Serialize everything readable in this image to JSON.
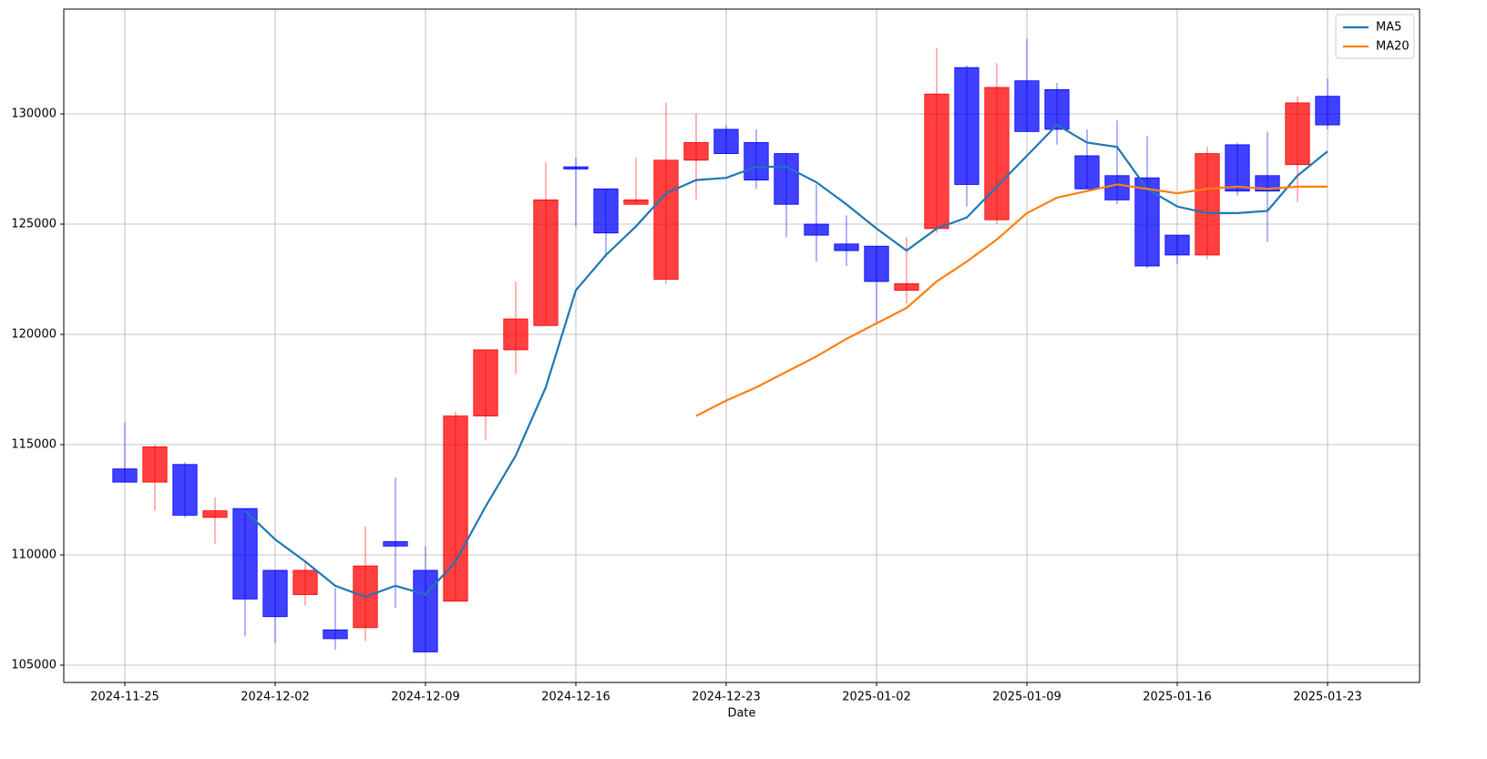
{
  "chart_data": {
    "type": "candlestick",
    "x_label": "Date",
    "categories": [
      "2024-11-25",
      null,
      null,
      null,
      null,
      "2024-12-02",
      null,
      null,
      null,
      null,
      "2024-12-09",
      null,
      null,
      null,
      null,
      "2024-12-16",
      null,
      null,
      null,
      null,
      "2024-12-23",
      null,
      null,
      null,
      null,
      "2025-01-02",
      null,
      null,
      null,
      null,
      "2025-01-09",
      null,
      null,
      null,
      null,
      "2025-01-16",
      null,
      null,
      null,
      null,
      "2025-01-23"
    ],
    "open": [
      113900,
      113300,
      114100,
      111700,
      112100,
      109300,
      108200,
      106600,
      106700,
      110600,
      109300,
      107900,
      116300,
      119300,
      120400,
      127600,
      126600,
      125900,
      122500,
      127900,
      129300,
      128700,
      128200,
      125000,
      124100,
      124000,
      122000,
      124800,
      132100,
      125200,
      131500,
      131100,
      128100,
      127200,
      127100,
      124500,
      123600,
      128600,
      127200,
      127700,
      130800
    ],
    "high": [
      116000,
      115000,
      114200,
      112600,
      112100,
      109300,
      109700,
      108500,
      111300,
      113500,
      110400,
      116500,
      119300,
      122400,
      127800,
      128000,
      126600,
      128000,
      130500,
      130000,
      129500,
      129300,
      128200,
      126800,
      125400,
      124000,
      124400,
      133000,
      132200,
      132300,
      133400,
      131400,
      129300,
      129700,
      129000,
      124500,
      128500,
      128700,
      129200,
      130800,
      131600
    ],
    "low": [
      113300,
      112000,
      111700,
      110500,
      106300,
      106000,
      107700,
      105700,
      106100,
      107600,
      105600,
      107900,
      115200,
      118200,
      120400,
      124900,
      123500,
      125900,
      122300,
      126100,
      128200,
      126600,
      124400,
      123300,
      123100,
      120500,
      121400,
      124600,
      125800,
      125000,
      129200,
      128600,
      126600,
      125900,
      123000,
      123200,
      123400,
      126300,
      124200,
      126000,
      129300
    ],
    "close": [
      113300,
      114900,
      111800,
      112000,
      108000,
      107200,
      109300,
      106200,
      109500,
      110400,
      105600,
      116300,
      119300,
      120700,
      126100,
      127500,
      124600,
      126100,
      127900,
      128700,
      128200,
      127000,
      125900,
      124500,
      123800,
      122400,
      122300,
      130900,
      126800,
      131200,
      129200,
      129300,
      126600,
      126100,
      123100,
      123600,
      128200,
      126500,
      126500,
      130500,
      129500
    ],
    "up_color": "#ff0000",
    "down_color": "#0000ff",
    "series": [
      {
        "name": "MA5",
        "color": "#1f77b4",
        "values": [
          null,
          null,
          null,
          null,
          112000,
          110700,
          109700,
          108600,
          108100,
          108600,
          108200,
          109700,
          112200,
          114500,
          117600,
          122000,
          123600,
          124900,
          126400,
          127000,
          127100,
          127600,
          127600,
          126900,
          125900,
          124800,
          123800,
          124800,
          125300,
          126700,
          128100,
          129500,
          128700,
          128500,
          126600,
          125800,
          125500,
          125500,
          125600,
          127200,
          128300
        ]
      },
      {
        "name": "MA20",
        "color": "#ff7f0e",
        "values": [
          null,
          null,
          null,
          null,
          null,
          null,
          null,
          null,
          null,
          null,
          null,
          null,
          null,
          null,
          null,
          null,
          null,
          null,
          null,
          116300,
          117000,
          117600,
          118300,
          119000,
          119800,
          120500,
          121200,
          122400,
          123300,
          124300,
          125500,
          126200,
          126500,
          126800,
          126600,
          126400,
          126600,
          126700,
          126600,
          126700,
          126700
        ]
      }
    ],
    "xlim": [
      -2.03,
      43.06
    ],
    "ylim": [
      104215,
      134752
    ],
    "yticks": [
      105000,
      110000,
      115000,
      120000,
      125000,
      130000
    ],
    "grid": true,
    "legend": "upper right"
  }
}
